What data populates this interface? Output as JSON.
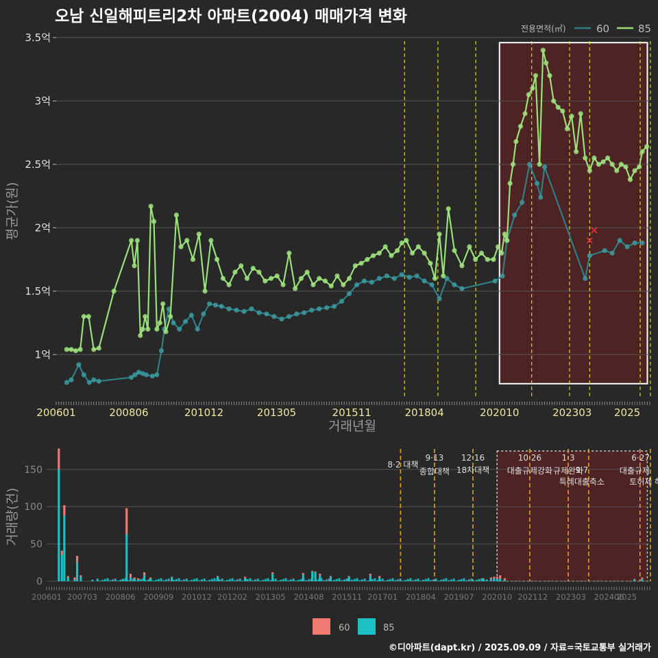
{
  "title": "오남 신일해피트리2차 아파트(2004) 매매가격 변화",
  "credit": "©디아파트(dapt.kr) / 2025.09.09 / 자료=국토교통부 실거래가",
  "colors": {
    "bg": "#282828",
    "grid": "#555555",
    "s60_line": "#2e7f86",
    "s60_point": "#3a9aa0",
    "s85_line": "#9be07a",
    "s85_point": "#9ee27e",
    "vline": "#e6d22a",
    "highlight": "#5a2121",
    "bar60": "#f07a72",
    "bar85": "#1cbfc4",
    "outlier": "#ff3030"
  },
  "chart_data": [
    {
      "type": "line",
      "title": "오남 신일해피트리2차 아파트(2004) 매매가격 변화",
      "xlabel": "거래년월",
      "ylabel": "평균가(원)",
      "legend": {
        "title": "전용면적(㎡)",
        "position": "top-right",
        "entries": [
          "60",
          "85"
        ]
      },
      "x_tick_labels": [
        "200601",
        "200806",
        "201012",
        "201305",
        "201511",
        "201804",
        "202010",
        "202303",
        "2025"
      ],
      "y_tick_labels": [
        "1억",
        "1.5억",
        "2억",
        "2.5억",
        "3억",
        "3.5억"
      ],
      "ylim": [
        0.65,
        3.58
      ],
      "xlim": [
        2006.0,
        2025.75
      ],
      "grid": true,
      "highlight_range": [
        2020.75,
        2025.67
      ],
      "policy_dates": [
        2017.59,
        2018.7,
        2019.96,
        2021.82,
        2023.08,
        2023.75,
        2025.43,
        2025.77
      ],
      "outliers_x": [
        2023.75,
        2023.9
      ],
      "outliers_y": [
        1.9,
        1.98
      ],
      "series": [
        {
          "name": "60",
          "x": [
            2006.35,
            2006.5,
            2006.75,
            2006.92,
            2007.1,
            2007.25,
            2007.42,
            2008.5,
            2008.62,
            2008.75,
            2008.88,
            2009.0,
            2009.2,
            2009.35,
            2009.5,
            2009.6,
            2009.75,
            2009.9,
            2010.1,
            2010.3,
            2010.5,
            2010.7,
            2010.9,
            2011.1,
            2011.3,
            2011.5,
            2011.75,
            2012.0,
            2012.25,
            2012.5,
            2012.75,
            2013.0,
            2013.25,
            2013.5,
            2013.75,
            2014.0,
            2014.25,
            2014.5,
            2014.75,
            2015.0,
            2015.25,
            2015.5,
            2015.75,
            2016.0,
            2016.25,
            2016.5,
            2016.75,
            2017.0,
            2017.25,
            2017.5,
            2017.75,
            2018.0,
            2018.25,
            2018.5,
            2018.75,
            2019.0,
            2019.25,
            2019.5,
            2020.6,
            2020.85,
            2021.0,
            2021.25,
            2021.5,
            2021.75,
            2022.0,
            2022.12,
            2022.25,
            2023.6,
            2023.75,
            2024.25,
            2024.5,
            2024.75,
            2025.0,
            2025.25,
            2025.5
          ],
          "y": [
            0.78,
            0.8,
            0.92,
            0.84,
            0.78,
            0.8,
            0.79,
            0.82,
            0.84,
            0.86,
            0.85,
            0.84,
            0.83,
            0.84,
            1.03,
            1.2,
            1.36,
            1.25,
            1.2,
            1.26,
            1.31,
            1.2,
            1.32,
            1.4,
            1.39,
            1.38,
            1.36,
            1.35,
            1.34,
            1.36,
            1.33,
            1.32,
            1.3,
            1.28,
            1.3,
            1.32,
            1.33,
            1.35,
            1.36,
            1.37,
            1.38,
            1.42,
            1.48,
            1.55,
            1.58,
            1.57,
            1.6,
            1.62,
            1.6,
            1.63,
            1.61,
            1.62,
            1.58,
            1.55,
            1.44,
            1.6,
            1.55,
            1.52,
            1.58,
            1.62,
            1.9,
            2.1,
            2.2,
            2.5,
            2.35,
            2.24,
            2.48,
            1.6,
            1.78,
            1.82,
            1.8,
            1.9,
            1.85,
            1.88,
            1.88
          ]
        },
        {
          "name": "85",
          "x": [
            2006.35,
            2006.5,
            2006.65,
            2006.8,
            2006.92,
            2007.08,
            2007.25,
            2007.42,
            2007.92,
            2008.5,
            2008.6,
            2008.7,
            2008.8,
            2008.88,
            2008.96,
            2009.05,
            2009.15,
            2009.25,
            2009.35,
            2009.45,
            2009.55,
            2009.65,
            2009.8,
            2010.0,
            2010.15,
            2010.35,
            2010.55,
            2010.75,
            2010.95,
            2011.15,
            2011.35,
            2011.55,
            2011.75,
            2011.95,
            2012.15,
            2012.35,
            2012.55,
            2012.75,
            2012.95,
            2013.15,
            2013.35,
            2013.55,
            2013.75,
            2013.95,
            2014.15,
            2014.35,
            2014.55,
            2014.75,
            2014.95,
            2015.15,
            2015.35,
            2015.55,
            2015.75,
            2015.95,
            2016.15,
            2016.35,
            2016.55,
            2016.75,
            2016.95,
            2017.15,
            2017.35,
            2017.5,
            2017.65,
            2017.85,
            2018.05,
            2018.25,
            2018.45,
            2018.6,
            2018.75,
            2018.88,
            2019.05,
            2019.25,
            2019.5,
            2019.75,
            2019.95,
            2020.15,
            2020.35,
            2020.55,
            2020.7,
            2020.82,
            2020.92,
            2021.0,
            2021.1,
            2021.2,
            2021.3,
            2021.45,
            2021.6,
            2021.72,
            2021.85,
            2021.95,
            2022.08,
            2022.2,
            2022.3,
            2022.42,
            2022.55,
            2022.7,
            2022.85,
            2023.0,
            2023.15,
            2023.3,
            2023.45,
            2023.6,
            2023.75,
            2023.9,
            2024.05,
            2024.2,
            2024.35,
            2024.5,
            2024.65,
            2024.8,
            2024.95,
            2025.1,
            2025.25,
            2025.4,
            2025.5,
            2025.65
          ],
          "y": [
            1.04,
            1.04,
            1.03,
            1.04,
            1.3,
            1.3,
            1.04,
            1.05,
            1.5,
            1.9,
            1.7,
            1.9,
            1.15,
            1.2,
            1.3,
            1.2,
            2.17,
            2.05,
            1.2,
            1.25,
            1.4,
            1.18,
            1.3,
            2.1,
            1.85,
            1.9,
            1.75,
            1.95,
            1.5,
            1.9,
            1.75,
            1.6,
            1.55,
            1.65,
            1.7,
            1.6,
            1.68,
            1.65,
            1.58,
            1.6,
            1.62,
            1.55,
            1.8,
            1.52,
            1.6,
            1.65,
            1.55,
            1.6,
            1.58,
            1.54,
            1.62,
            1.55,
            1.6,
            1.7,
            1.72,
            1.75,
            1.78,
            1.8,
            1.85,
            1.78,
            1.82,
            1.88,
            1.9,
            1.8,
            1.85,
            1.8,
            1.72,
            1.6,
            1.95,
            1.62,
            2.15,
            1.82,
            1.7,
            1.85,
            1.75,
            1.8,
            1.75,
            1.75,
            1.85,
            1.8,
            1.95,
            1.9,
            2.35,
            2.5,
            2.68,
            2.8,
            2.9,
            3.05,
            3.1,
            3.2,
            2.5,
            3.4,
            3.3,
            3.2,
            3.0,
            2.95,
            2.92,
            2.78,
            2.88,
            2.6,
            2.9,
            2.55,
            2.45,
            2.55,
            2.5,
            2.52,
            2.55,
            2.5,
            2.45,
            2.5,
            2.48,
            2.38,
            2.45,
            2.48,
            2.6,
            2.64
          ]
        }
      ]
    },
    {
      "type": "bar",
      "ylabel": "거래량(건)",
      "legend": {
        "position": "bottom",
        "entries": [
          "60",
          "85"
        ]
      },
      "x_tick_labels": [
        "200601",
        "200703",
        "200806",
        "200909",
        "201012",
        "201202",
        "201305",
        "201408",
        "201511",
        "201701",
        "201804",
        "201907",
        "202010",
        "202112",
        "202303",
        "202406",
        "2025"
      ],
      "y_tick_labels": [
        "0",
        "50",
        "100",
        "150"
      ],
      "ylim": [
        0,
        182
      ],
      "grid": true,
      "highlight_range": [
        2020.75,
        2025.67
      ],
      "policy_labels": [
        {
          "date": "8·2 대책",
          "sub": "",
          "x": 2017.59
        },
        {
          "date": "9·13",
          "sub": "종합대책",
          "x": 2018.7
        },
        {
          "date": "12·16",
          "sub": "18차대책",
          "x": 2019.96
        },
        {
          "date": "10·26",
          "sub": "대출규제강화",
          "x": 2021.82
        },
        {
          "date": "1·3",
          "sub": "규제완화",
          "x": 2023.08
        },
        {
          "date": "9·7",
          "sub": "특례대출축소",
          "x": 2023.75
        },
        {
          "date": "",
          "sub": "토허제 해제",
          "x": 2025.43
        },
        {
          "date": "6·27",
          "sub": "대출규제",
          "x": 2025.77
        }
      ],
      "bars": [
        {
          "x": 2006.4,
          "v60": 28,
          "v85": 150
        },
        {
          "x": 2006.5,
          "v60": 6,
          "v85": 35
        },
        {
          "x": 2006.58,
          "v60": 14,
          "v85": 88
        },
        {
          "x": 2006.7,
          "v60": 2,
          "v85": 5
        },
        {
          "x": 2006.92,
          "v60": 3,
          "v85": 2
        },
        {
          "x": 2007.0,
          "v60": 8,
          "v85": 26
        },
        {
          "x": 2007.12,
          "v60": 2,
          "v85": 6
        },
        {
          "x": 2007.5,
          "v60": 0,
          "v85": 2
        },
        {
          "x": 2008.5,
          "v60": 2,
          "v85": 1
        },
        {
          "x": 2008.62,
          "v60": 35,
          "v85": 63
        },
        {
          "x": 2008.75,
          "v60": 5,
          "v85": 5
        },
        {
          "x": 2008.88,
          "v60": 2,
          "v85": 3
        },
        {
          "x": 2009.0,
          "v60": 2,
          "v85": 2
        },
        {
          "x": 2009.2,
          "v60": 4,
          "v85": 8
        },
        {
          "x": 2009.4,
          "v60": 2,
          "v85": 3
        },
        {
          "x": 2010.1,
          "v60": 0,
          "v85": 6
        },
        {
          "x": 2011.6,
          "v60": 1,
          "v85": 6
        },
        {
          "x": 2012.5,
          "v60": 2,
          "v85": 4
        },
        {
          "x": 2013.4,
          "v60": 2,
          "v85": 10
        },
        {
          "x": 2014.4,
          "v60": 2,
          "v85": 9
        },
        {
          "x": 2014.7,
          "v60": 1,
          "v85": 13
        },
        {
          "x": 2014.8,
          "v60": 1,
          "v85": 12
        },
        {
          "x": 2014.95,
          "v60": 2,
          "v85": 8
        },
        {
          "x": 2015.3,
          "v60": 1,
          "v85": 6
        },
        {
          "x": 2015.9,
          "v60": 1,
          "v85": 6
        },
        {
          "x": 2016.6,
          "v60": 2,
          "v85": 8
        },
        {
          "x": 2016.9,
          "v60": 2,
          "v85": 5
        },
        {
          "x": 2020.3,
          "v60": 1,
          "v85": 3
        },
        {
          "x": 2020.55,
          "v60": 2,
          "v85": 3
        },
        {
          "x": 2020.65,
          "v60": 2,
          "v85": 4
        },
        {
          "x": 2020.75,
          "v60": 3,
          "v85": 3
        },
        {
          "x": 2020.85,
          "v60": 4,
          "v85": 4
        },
        {
          "x": 2021.0,
          "v60": 2,
          "v85": 2
        },
        {
          "x": 2025.25,
          "v60": 1,
          "v85": 2
        },
        {
          "x": 2025.5,
          "v60": 2,
          "v85": 3
        }
      ]
    }
  ]
}
